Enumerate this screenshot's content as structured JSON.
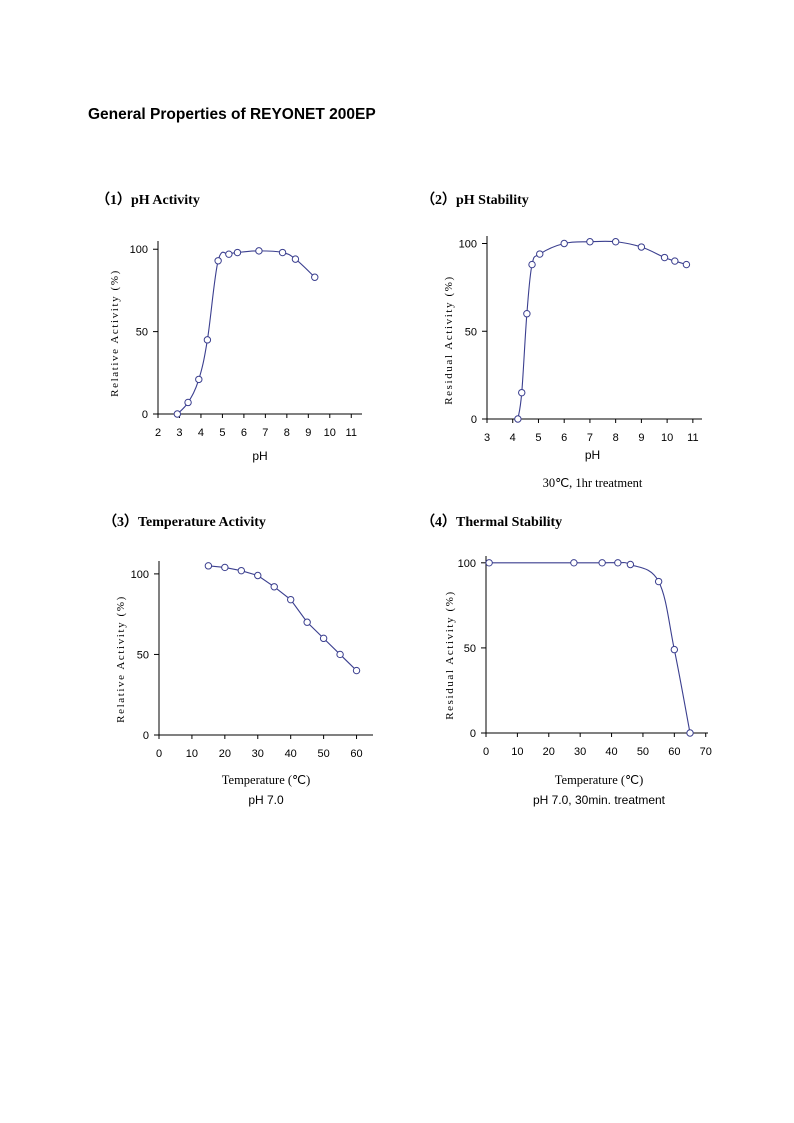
{
  "document": {
    "title": "General Properties of REYONET 200EP"
  },
  "colors": {
    "series": "#3b3f8f",
    "axis": "#000000",
    "marker_fill": "#ffffff"
  },
  "chart_data": [
    {
      "type": "line",
      "heading": "（1）pH Activity",
      "xlabel": "pH",
      "ylabel": "Relative Activity (%)",
      "note": "",
      "xlim": [
        2,
        11.5
      ],
      "ylim": [
        0,
        105
      ],
      "xticks": [
        2,
        3,
        4,
        5,
        6,
        7,
        8,
        9,
        10,
        11
      ],
      "yticks": [
        0,
        50,
        100
      ],
      "x": [
        2.9,
        3.4,
        3.9,
        4.3,
        4.8,
        5.3,
        5.7,
        6.7,
        7.8,
        8.4,
        9.3
      ],
      "y": [
        0,
        7,
        21,
        45,
        93,
        97,
        98,
        99,
        98,
        94,
        83
      ],
      "smooth": true,
      "grid": false,
      "legend": "none"
    },
    {
      "type": "line",
      "heading": "（2）pH Stability",
      "xlabel": "pH",
      "ylabel": "Residual Activity (%)",
      "note": "30℃, 1hr treatment",
      "xlim": [
        3,
        11.2
      ],
      "ylim": [
        0,
        102
      ],
      "xticks": [
        3,
        4,
        5,
        6,
        7,
        8,
        9,
        10,
        11
      ],
      "yticks": [
        0,
        50,
        100
      ],
      "x": [
        4.2,
        4.35,
        4.55,
        4.75,
        5.05,
        6,
        7,
        8,
        9,
        9.9,
        10.3,
        10.75
      ],
      "y": [
        0,
        15,
        60,
        88,
        94,
        100,
        101,
        101,
        98,
        92,
        90,
        88
      ],
      "smooth": true,
      "grid": false,
      "legend": "none"
    },
    {
      "type": "line",
      "heading": "（3）Temperature Activity",
      "xlabel": "Temperature (℃)",
      "ylabel": "Relative Activity (%)",
      "note": "pH 7.0",
      "xlim": [
        0,
        65
      ],
      "ylim": [
        0,
        108
      ],
      "xticks": [
        0,
        10,
        20,
        30,
        40,
        50,
        60
      ],
      "yticks": [
        0,
        50,
        100
      ],
      "x": [
        15,
        20,
        25,
        30,
        35,
        40,
        45,
        50,
        55,
        60
      ],
      "y": [
        105,
        104,
        102,
        99,
        92,
        84,
        70,
        60,
        50,
        40
      ],
      "smooth": false,
      "grid": false,
      "legend": "none"
    },
    {
      "type": "line",
      "heading": "（4）Thermal Stability",
      "xlabel": "Temperature (℃)",
      "ylabel": "Residual Activity (%)",
      "note": "pH 7.0, 30min. treatment",
      "xlim": [
        0,
        72
      ],
      "ylim": [
        0,
        104
      ],
      "xticks": [
        0,
        10,
        20,
        30,
        40,
        50,
        60,
        70
      ],
      "yticks": [
        0,
        50,
        100
      ],
      "x": [
        1,
        28,
        37,
        42,
        46,
        55,
        60,
        65
      ],
      "y": [
        100,
        100,
        100,
        100,
        99,
        89,
        49,
        0
      ],
      "smooth": true,
      "grid": false,
      "legend": "none"
    }
  ]
}
